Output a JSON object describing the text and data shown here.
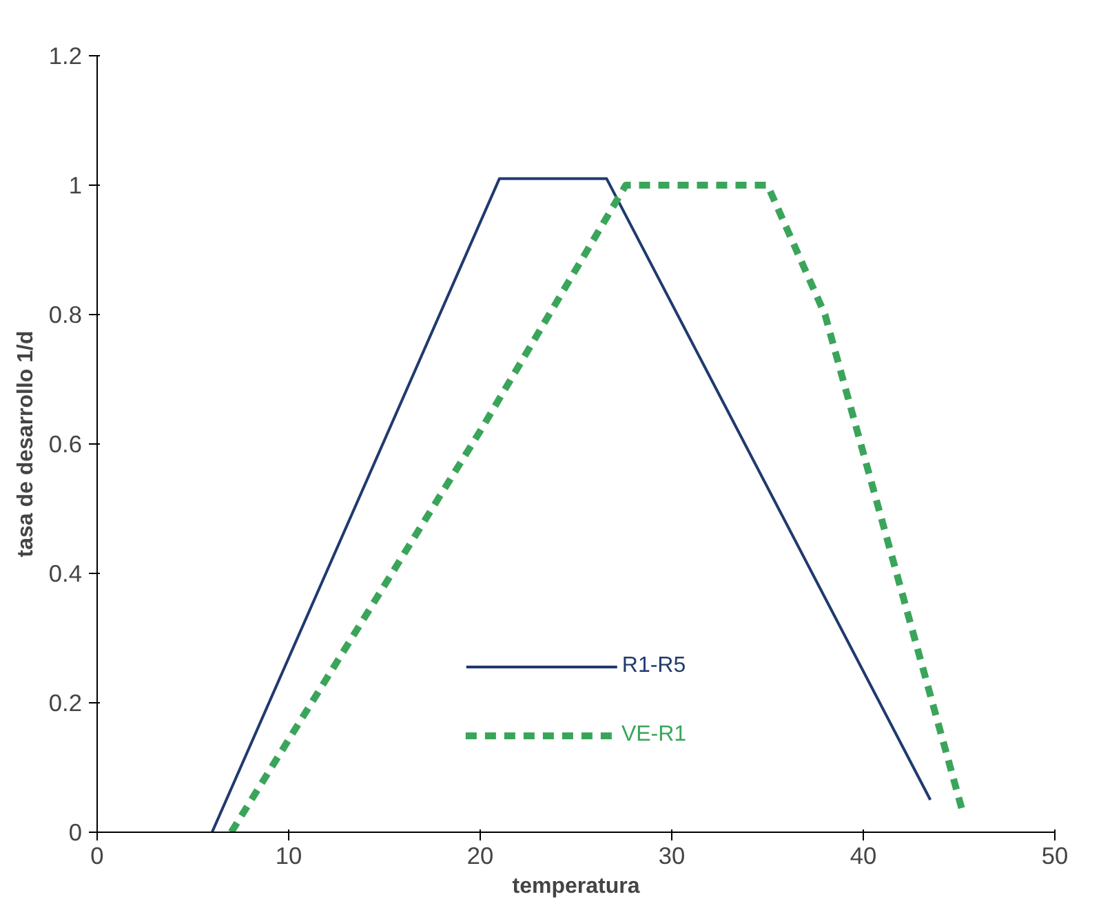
{
  "chart_data": {
    "type": "line",
    "xlabel": "temperatura",
    "ylabel": "tasa de desarrollo 1/d",
    "xlim": [
      0,
      50
    ],
    "ylim": [
      0,
      1.2
    ],
    "xticks": [
      0,
      10,
      20,
      30,
      40,
      50
    ],
    "yticks": [
      0,
      0.2,
      0.4,
      0.6,
      0.8,
      1,
      1.2
    ],
    "grid": false,
    "legend": "bottom",
    "marker": "none",
    "series": [
      {
        "name": "R1-R5",
        "color": "#1f3a6e",
        "line_style": "solid",
        "x": [
          6,
          21,
          26.6,
          43.5
        ],
        "values": [
          0,
          1.01,
          1.01,
          0.05
        ]
      },
      {
        "name": "VE-R1",
        "color": "#3aa55a",
        "line_style": "dashed",
        "x": [
          7,
          20,
          27.6,
          35,
          38,
          45.2
        ],
        "values": [
          0,
          0.62,
          1,
          1,
          0.8,
          0.03
        ]
      }
    ]
  }
}
